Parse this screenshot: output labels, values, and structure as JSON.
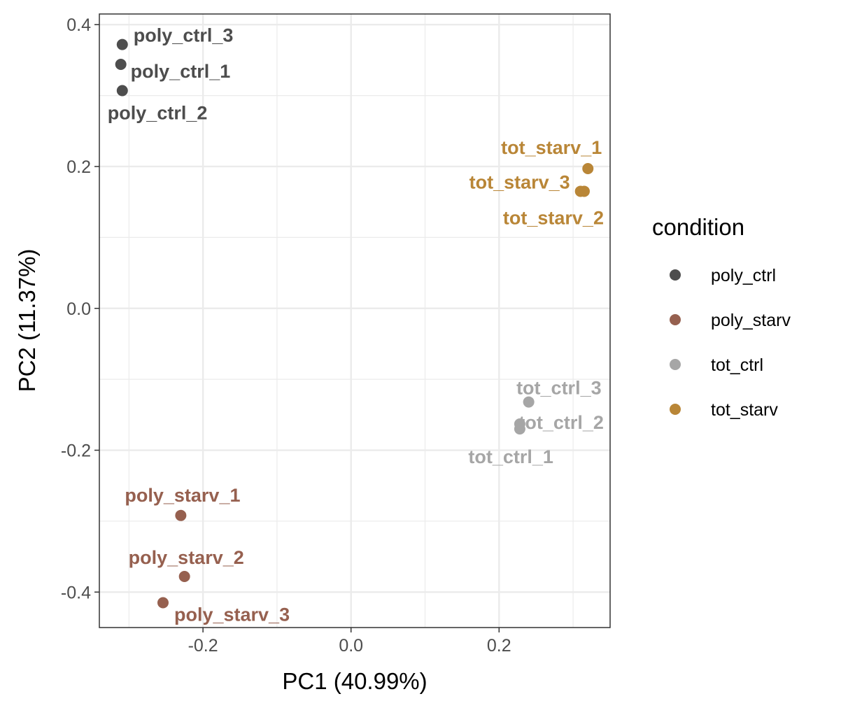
{
  "chart_data": {
    "type": "scatter",
    "xlabel": "PC1 (40.99%)",
    "ylabel": "PC2 (11.37%)",
    "xlim": [
      -0.34,
      0.35
    ],
    "ylim": [
      -0.45,
      0.415
    ],
    "xticks": [
      -0.2,
      0.0,
      0.2
    ],
    "xtick_labels": [
      "-0.2",
      "0.0",
      "0.2"
    ],
    "yticks": [
      -0.4,
      -0.2,
      0.0,
      0.2,
      0.4
    ],
    "ytick_labels": [
      "-0.4",
      "-0.2",
      "0.0",
      "0.2",
      "0.4"
    ],
    "grid": true,
    "legend": {
      "title": "condition",
      "placement": "right"
    },
    "series": [
      {
        "name": "poly_ctrl",
        "color": "#4d4d4d",
        "points": [
          {
            "label": "poly_ctrl_3",
            "x": -0.309,
            "y": 0.372
          },
          {
            "label": "poly_ctrl_1",
            "x": -0.311,
            "y": 0.344
          },
          {
            "label": "poly_ctrl_2",
            "x": -0.309,
            "y": 0.307
          }
        ]
      },
      {
        "name": "poly_starv",
        "color": "#96604f",
        "points": [
          {
            "label": "poly_starv_1",
            "x": -0.23,
            "y": -0.292
          },
          {
            "label": "poly_starv_2",
            "x": -0.225,
            "y": -0.378
          },
          {
            "label": "poly_starv_3",
            "x": -0.254,
            "y": -0.415
          }
        ]
      },
      {
        "name": "tot_ctrl",
        "color": "#a6a6a6",
        "points": [
          {
            "label": "tot_ctrl_3",
            "x": 0.24,
            "y": -0.132
          },
          {
            "label": "tot_ctrl_2",
            "x": 0.228,
            "y": -0.163
          },
          {
            "label": "tot_ctrl_1",
            "x": 0.228,
            "y": -0.17
          }
        ]
      },
      {
        "name": "tot_starv",
        "color": "#b98637",
        "points": [
          {
            "label": "tot_starv_1",
            "x": 0.32,
            "y": 0.197
          },
          {
            "label": "tot_starv_3",
            "x": 0.31,
            "y": 0.165
          },
          {
            "label": "tot_starv_2",
            "x": 0.315,
            "y": 0.165
          }
        ]
      }
    ]
  }
}
